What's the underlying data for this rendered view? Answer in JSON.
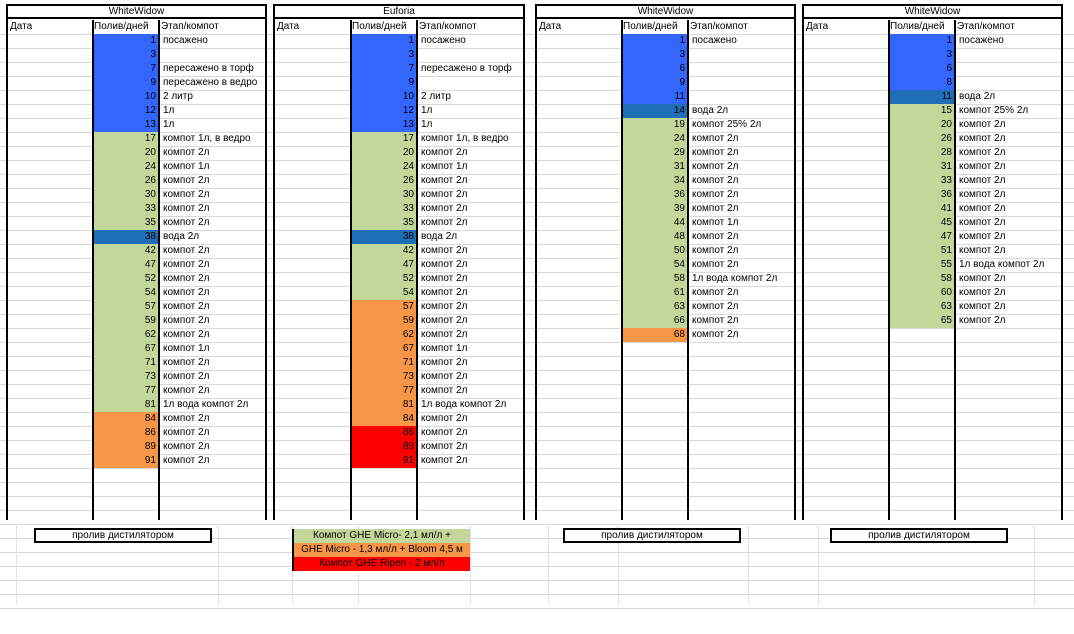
{
  "colors": {
    "blue": "#3366ff",
    "green": "#c4d79b",
    "teal": "#1f6fb8",
    "orange": "#f79646",
    "red": "#ff0000",
    "grid": "#d9d9d9"
  },
  "headers": {
    "date": "Дата",
    "water": "Полив/дней",
    "stage": "Этап/компот"
  },
  "panels": [
    {
      "title": "WhiteWidow",
      "rows": [
        {
          "n": "1",
          "s": "посажено",
          "c": "blue"
        },
        {
          "n": "3",
          "s": "",
          "c": "blue"
        },
        {
          "n": "7",
          "s": "пересажено в торф",
          "c": "blue"
        },
        {
          "n": "9",
          "s": "пересажено в ведро",
          "c": "blue"
        },
        {
          "n": "10",
          "s": "2 литр",
          "c": "blue"
        },
        {
          "n": "12",
          "s": "1л",
          "c": "blue"
        },
        {
          "n": "13",
          "s": "1л",
          "c": "blue"
        },
        {
          "n": "17",
          "s": "компот 1л, в ведро",
          "c": "green"
        },
        {
          "n": "20",
          "s": "компот 2л",
          "c": "green"
        },
        {
          "n": "24",
          "s": "компот 1л",
          "c": "green"
        },
        {
          "n": "26",
          "s": "компот 2л",
          "c": "green"
        },
        {
          "n": "30",
          "s": "компот 2л",
          "c": "green"
        },
        {
          "n": "33",
          "s": "компот 2л",
          "c": "green"
        },
        {
          "n": "35",
          "s": "компот 2л",
          "c": "green"
        },
        {
          "n": "38",
          "s": "вода 2л",
          "c": "teal"
        },
        {
          "n": "42",
          "s": "компот 2л",
          "c": "green"
        },
        {
          "n": "47",
          "s": "компот 2л",
          "c": "green"
        },
        {
          "n": "52",
          "s": "компот 2л",
          "c": "green"
        },
        {
          "n": "54",
          "s": "компот 2л",
          "c": "green"
        },
        {
          "n": "57",
          "s": "компот 2л",
          "c": "green"
        },
        {
          "n": "59",
          "s": "компот 2л",
          "c": "green"
        },
        {
          "n": "62",
          "s": "компот 2л",
          "c": "green"
        },
        {
          "n": "67",
          "s": "компот 1л",
          "c": "green"
        },
        {
          "n": "71",
          "s": "компот 2л",
          "c": "green"
        },
        {
          "n": "73",
          "s": "компот 2л",
          "c": "green"
        },
        {
          "n": "77",
          "s": "компот 2л",
          "c": "green"
        },
        {
          "n": "81",
          "s": "1л вода компот 2л",
          "c": "green"
        },
        {
          "n": "84",
          "s": "компот 2л",
          "c": "orange"
        },
        {
          "n": "86",
          "s": "компот 2л",
          "c": "orange"
        },
        {
          "n": "89",
          "s": "компот 2л",
          "c": "orange"
        },
        {
          "n": "91",
          "s": "компот 2л",
          "c": "orange"
        }
      ],
      "footer": "пролив дистилятором"
    },
    {
      "title": "Euforia",
      "rows": [
        {
          "n": "1",
          "s": "посажено",
          "c": "blue"
        },
        {
          "n": "3",
          "s": "",
          "c": "blue"
        },
        {
          "n": "7",
          "s": "пересажено в торф",
          "c": "blue"
        },
        {
          "n": "9",
          "s": "",
          "c": "blue"
        },
        {
          "n": "10",
          "s": "2 литр",
          "c": "blue"
        },
        {
          "n": "12",
          "s": "1л",
          "c": "blue"
        },
        {
          "n": "13",
          "s": "1л",
          "c": "blue"
        },
        {
          "n": "17",
          "s": "компот 1л, в ведро",
          "c": "green"
        },
        {
          "n": "20",
          "s": "компот 2л",
          "c": "green"
        },
        {
          "n": "24",
          "s": "компот 1л",
          "c": "green"
        },
        {
          "n": "26",
          "s": "компот 2л",
          "c": "green"
        },
        {
          "n": "30",
          "s": "компот 2л",
          "c": "green"
        },
        {
          "n": "33",
          "s": "компот 2л",
          "c": "green"
        },
        {
          "n": "35",
          "s": "компот 2л",
          "c": "green"
        },
        {
          "n": "38",
          "s": "вода 2л",
          "c": "teal"
        },
        {
          "n": "42",
          "s": "компот 2л",
          "c": "green"
        },
        {
          "n": "47",
          "s": "компот 2л",
          "c": "green"
        },
        {
          "n": "52",
          "s": "компот 2л",
          "c": "green"
        },
        {
          "n": "54",
          "s": "компот 2л",
          "c": "green"
        },
        {
          "n": "57",
          "s": "компот 2л",
          "c": "orange"
        },
        {
          "n": "59",
          "s": "компот 2л",
          "c": "orange"
        },
        {
          "n": "62",
          "s": "компот 2л",
          "c": "orange"
        },
        {
          "n": "67",
          "s": "компот 1л",
          "c": "orange"
        },
        {
          "n": "71",
          "s": "компот 2л",
          "c": "orange"
        },
        {
          "n": "73",
          "s": "компот 2л",
          "c": "orange"
        },
        {
          "n": "77",
          "s": "компот 2л",
          "c": "orange"
        },
        {
          "n": "81",
          "s": "1л вода компот 2л",
          "c": "orange"
        },
        {
          "n": "84",
          "s": "компот 2л",
          "c": "orange"
        },
        {
          "n": "86",
          "s": "компот 2л",
          "c": "red"
        },
        {
          "n": "89",
          "s": "компот 2л",
          "c": "red"
        },
        {
          "n": "91",
          "s": "компот 2л",
          "c": "red"
        }
      ],
      "footer": ""
    },
    {
      "title": "WhiteWidow",
      "rows": [
        {
          "n": "1",
          "s": "посажено",
          "c": "blue"
        },
        {
          "n": "3",
          "s": "",
          "c": "blue"
        },
        {
          "n": "6",
          "s": "",
          "c": "blue"
        },
        {
          "n": "9",
          "s": "",
          "c": "blue"
        },
        {
          "n": "11",
          "s": "",
          "c": "blue"
        },
        {
          "n": "14",
          "s": "вода 2л",
          "c": "teal"
        },
        {
          "n": "19",
          "s": "компот 25% 2л",
          "c": "green"
        },
        {
          "n": "24",
          "s": "компот 2л",
          "c": "green"
        },
        {
          "n": "29",
          "s": "компот 2л",
          "c": "green"
        },
        {
          "n": "31",
          "s": "компот 2л",
          "c": "green"
        },
        {
          "n": "34",
          "s": "компот 2л",
          "c": "green"
        },
        {
          "n": "36",
          "s": "компот 2л",
          "c": "green"
        },
        {
          "n": "39",
          "s": "компот 2л",
          "c": "green"
        },
        {
          "n": "44",
          "s": "компот 1л",
          "c": "green"
        },
        {
          "n": "48",
          "s": "компот 2л",
          "c": "green"
        },
        {
          "n": "50",
          "s": "компот 2л",
          "c": "green"
        },
        {
          "n": "54",
          "s": "компот 2л",
          "c": "green"
        },
        {
          "n": "58",
          "s": "1л вода компот 2л",
          "c": "green"
        },
        {
          "n": "61",
          "s": "компот 2л",
          "c": "green"
        },
        {
          "n": "63",
          "s": "компот 2л",
          "c": "green"
        },
        {
          "n": "66",
          "s": "компот 2л",
          "c": "green"
        },
        {
          "n": "68",
          "s": "компот 2л",
          "c": "orange"
        }
      ],
      "footer": "пролив дистилятором"
    },
    {
      "title": "WhiteWidow",
      "rows": [
        {
          "n": "1",
          "s": "посажено",
          "c": "blue"
        },
        {
          "n": "3",
          "s": "",
          "c": "blue"
        },
        {
          "n": "6",
          "s": "",
          "c": "blue"
        },
        {
          "n": "8",
          "s": "",
          "c": "blue"
        },
        {
          "n": "11",
          "s": "вода 2л",
          "c": "teal"
        },
        {
          "n": "15",
          "s": "компот 25% 2л",
          "c": "green"
        },
        {
          "n": "20",
          "s": "компот 2л",
          "c": "green"
        },
        {
          "n": "26",
          "s": "компот 2л",
          "c": "green"
        },
        {
          "n": "28",
          "s": "компот 2л",
          "c": "green"
        },
        {
          "n": "31",
          "s": "компот 2л",
          "c": "green"
        },
        {
          "n": "33",
          "s": "компот 2л",
          "c": "green"
        },
        {
          "n": "36",
          "s": "компот 2л",
          "c": "green"
        },
        {
          "n": "41",
          "s": "компот 2л",
          "c": "green"
        },
        {
          "n": "45",
          "s": "компот 2л",
          "c": "green"
        },
        {
          "n": "47",
          "s": "компот 2л",
          "c": "green"
        },
        {
          "n": "51",
          "s": "компот 2л",
          "c": "green"
        },
        {
          "n": "55",
          "s": "1л вода компот 2л",
          "c": "green"
        },
        {
          "n": "58",
          "s": "компот 2л",
          "c": "green"
        },
        {
          "n": "60",
          "s": "компот 2л",
          "c": "green"
        },
        {
          "n": "63",
          "s": "компот 2л",
          "c": "green"
        },
        {
          "n": "65",
          "s": "компот 2л",
          "c": "green"
        }
      ],
      "footer": "пролив дистилятором"
    }
  ],
  "legend": [
    {
      "text": "Компот GHE Micro-  2,1 мл/л  +",
      "c": "green"
    },
    {
      "text": "GHE Micro - 1,3 мл/л + Bloom 4,5 м",
      "c": "orange"
    },
    {
      "text": "Компот GHE Ripen - 2 мл/л",
      "c": "red"
    }
  ]
}
